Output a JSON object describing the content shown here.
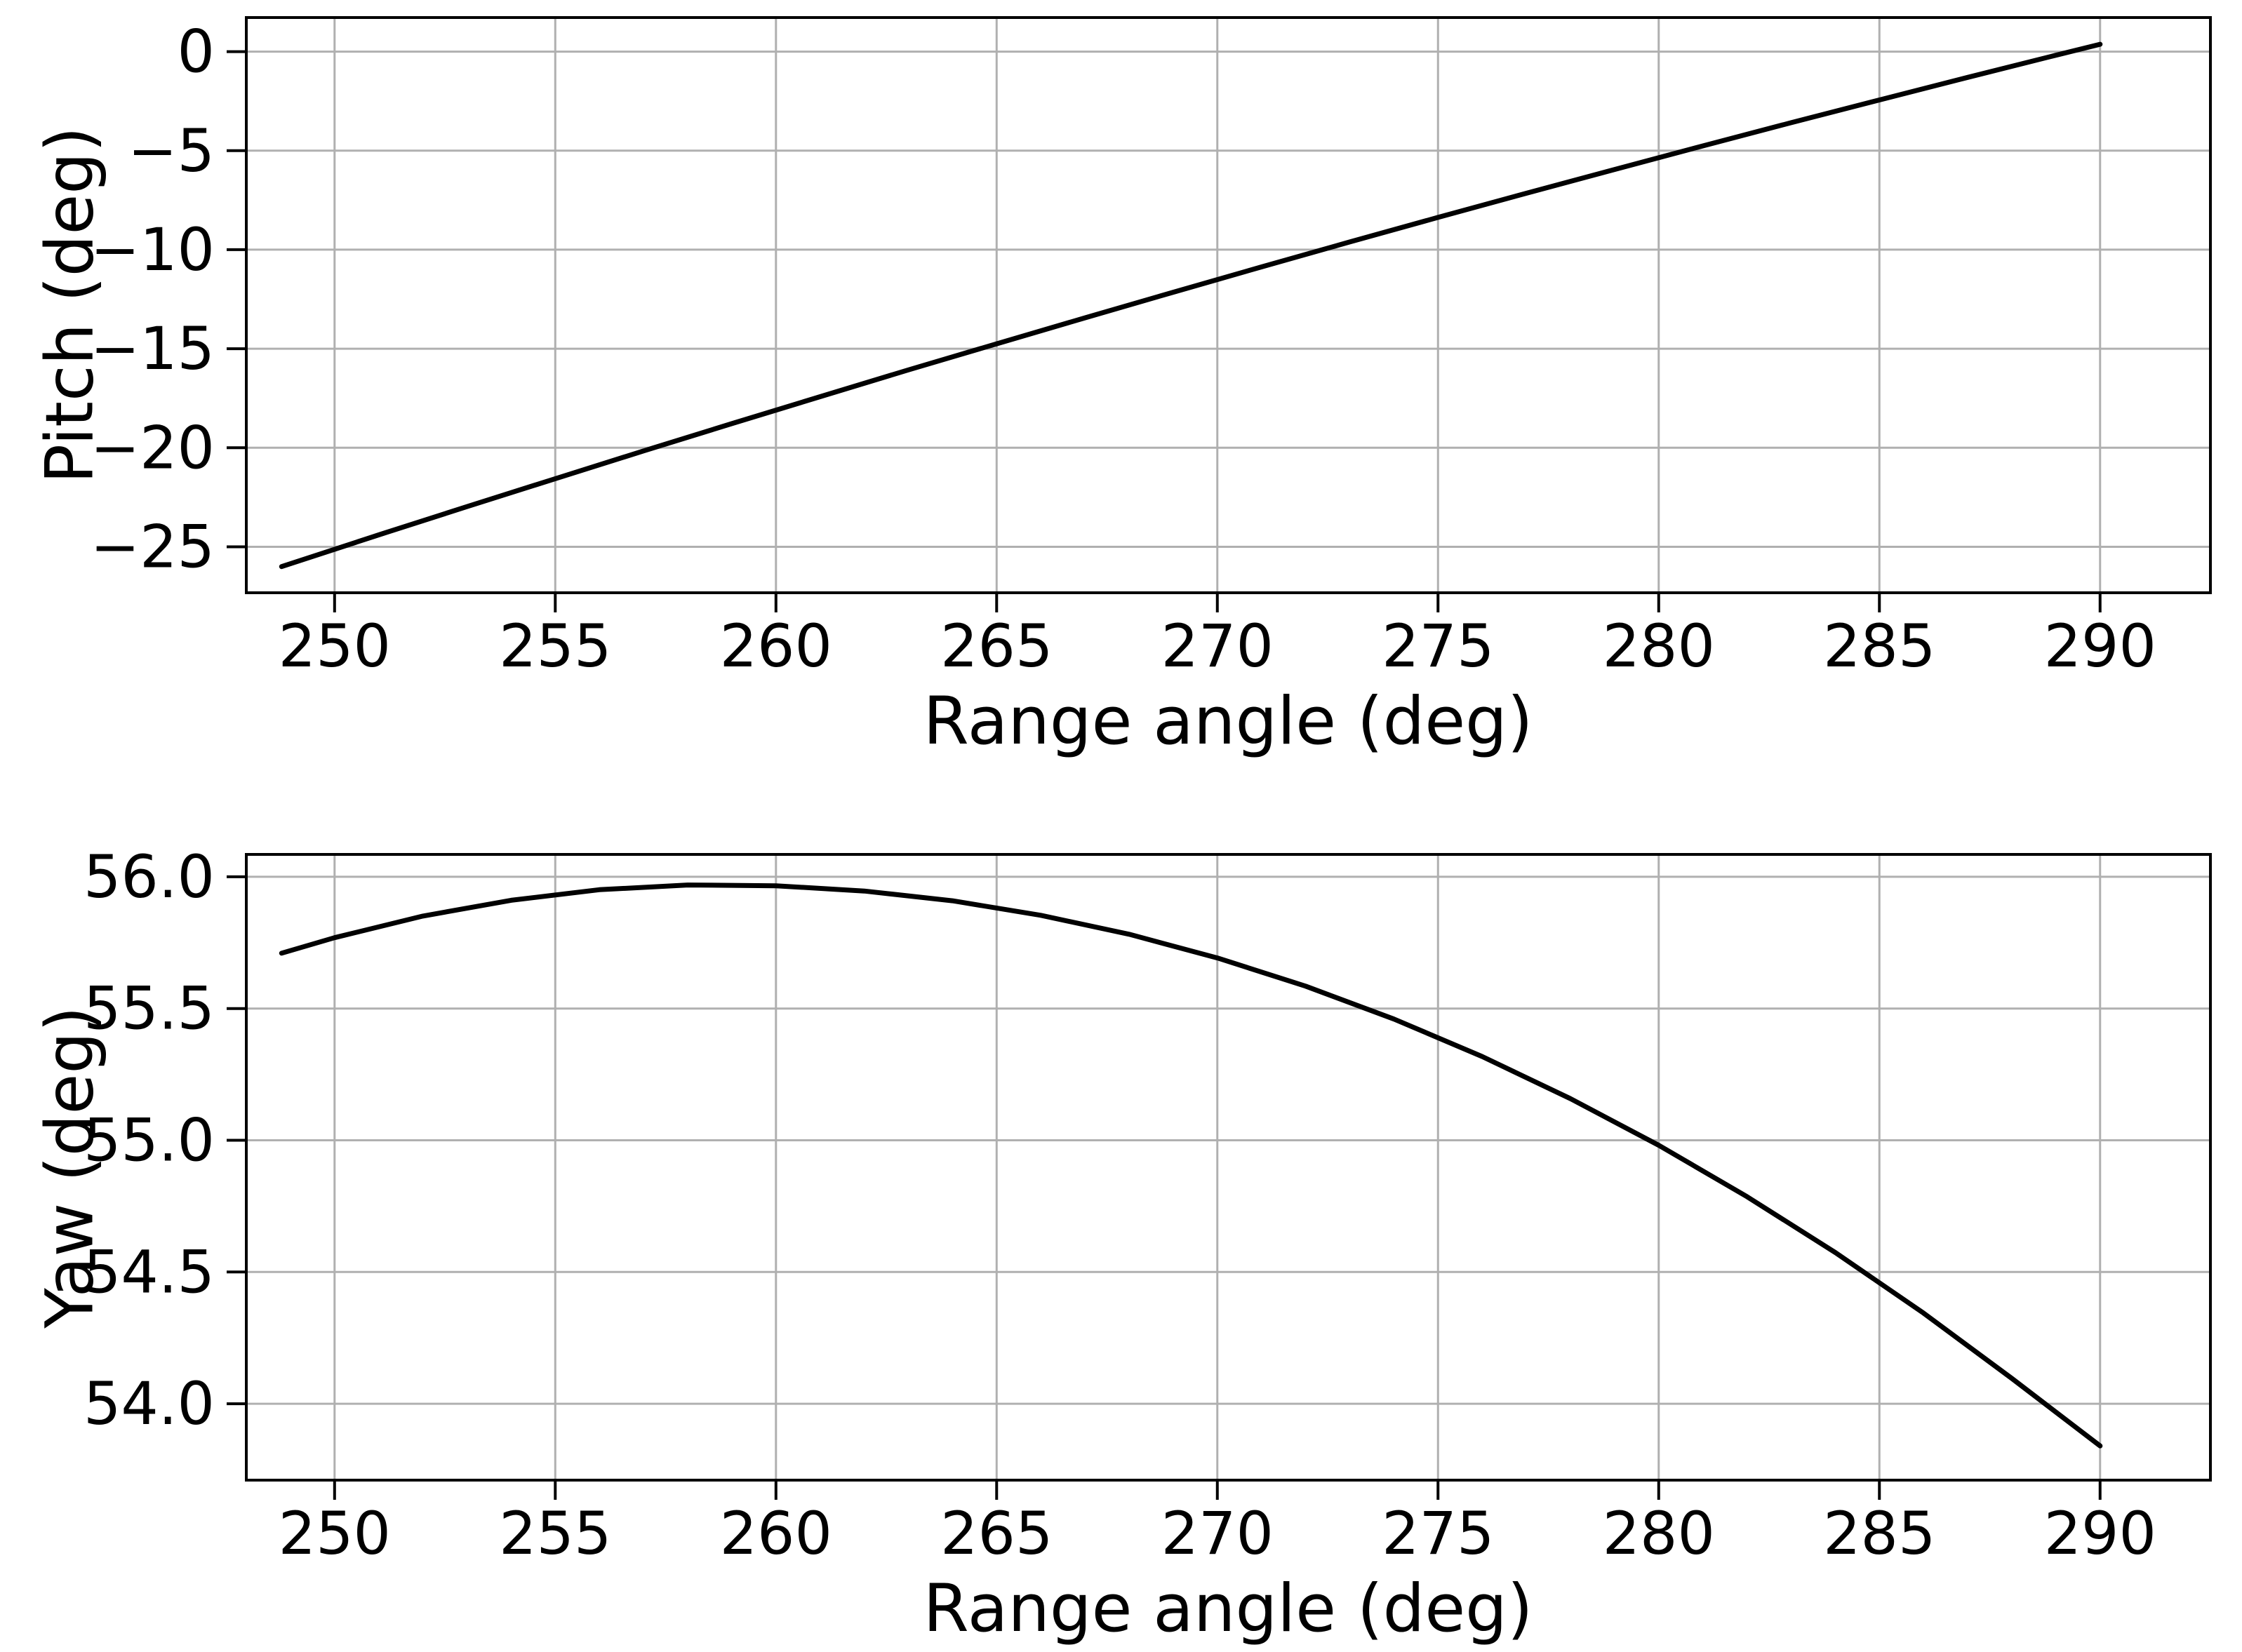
{
  "figure": {
    "background": "#ffffff",
    "grid_color": "#b0b0b0",
    "spine_color": "#000000",
    "text_color": "#000000",
    "line_color": "#000000"
  },
  "chart_data": [
    {
      "type": "line",
      "title": "",
      "xlabel": "Range angle (deg)",
      "ylabel": "Pitch (deg)",
      "xlim": [
        248.0,
        292.5
      ],
      "ylim": [
        -27.32,
        1.72
      ],
      "xticks": [
        250,
        255,
        260,
        265,
        270,
        275,
        280,
        285,
        290
      ],
      "xtick_labels": [
        "250",
        "255",
        "260",
        "265",
        "270",
        "275",
        "280",
        "285",
        "290"
      ],
      "yticks": [
        0,
        -5,
        -10,
        -15,
        -20,
        -25
      ],
      "ytick_labels": [
        "0",
        "−5",
        "−10",
        "−15",
        "−20",
        "−25"
      ],
      "grid": true,
      "legend_position": "none",
      "series": [
        {
          "name": "pitch",
          "color": "#000000",
          "x": [
            248.8,
            251,
            253,
            255,
            257,
            259,
            261,
            263,
            265,
            267,
            269,
            271,
            273,
            275,
            277,
            279,
            281,
            283,
            285,
            287,
            289,
            290
          ],
          "y": [
            -26.0,
            -24.4,
            -22.97,
            -21.56,
            -20.16,
            -18.78,
            -17.42,
            -16.07,
            -14.75,
            -13.44,
            -12.15,
            -10.87,
            -9.61,
            -8.37,
            -7.15,
            -5.95,
            -4.76,
            -3.59,
            -2.44,
            -1.3,
            -0.18,
            0.37
          ]
        }
      ]
    },
    {
      "type": "line",
      "title": "",
      "xlabel": "Range angle (deg)",
      "ylabel": "Yaw (deg)",
      "xlim": [
        248.0,
        292.5
      ],
      "ylim": [
        53.71,
        56.085
      ],
      "xticks": [
        250,
        255,
        260,
        265,
        270,
        275,
        280,
        285,
        290
      ],
      "xtick_labels": [
        "250",
        "255",
        "260",
        "265",
        "270",
        "275",
        "280",
        "285",
        "290"
      ],
      "yticks": [
        56.0,
        55.5,
        55.0,
        54.5,
        54.0
      ],
      "ytick_labels": [
        "56.0",
        "55.5",
        "55.0",
        "54.5",
        "54.0"
      ],
      "grid": true,
      "legend_position": "none",
      "series": [
        {
          "name": "yaw",
          "color": "#000000",
          "x": [
            248.8,
            250,
            252,
            254,
            256,
            258,
            260,
            262,
            264,
            266,
            268,
            270,
            272,
            274,
            276,
            278,
            280,
            282,
            284,
            286,
            288,
            290
          ],
          "y": [
            55.71,
            55.769,
            55.851,
            55.911,
            55.951,
            55.969,
            55.966,
            55.946,
            55.909,
            55.854,
            55.782,
            55.692,
            55.585,
            55.46,
            55.318,
            55.158,
            54.981,
            54.786,
            54.574,
            54.344,
            54.096,
            53.84
          ]
        }
      ]
    }
  ]
}
